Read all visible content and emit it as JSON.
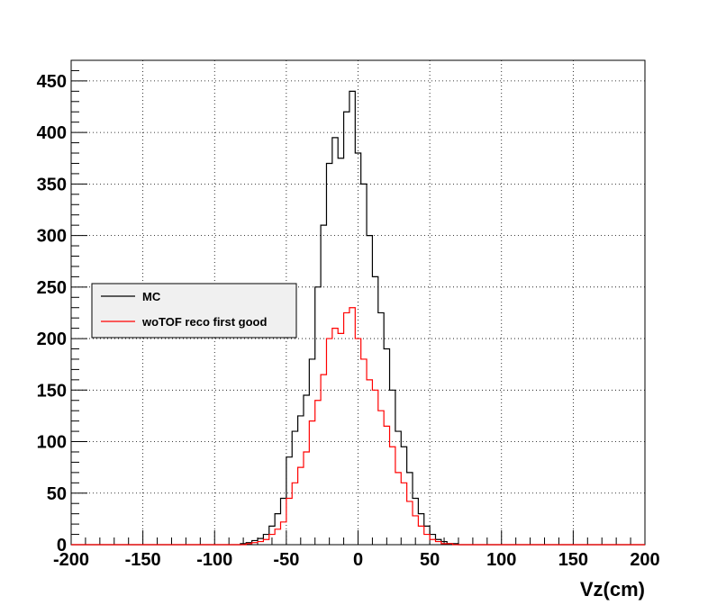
{
  "chart_data": {
    "type": "line",
    "title": "",
    "xlabel": "Vz(cm)",
    "ylabel": "",
    "xlim": [
      -200,
      200
    ],
    "ylim": [
      0,
      470
    ],
    "grid": true,
    "legend_position": "middle-left",
    "x_ticks": [
      -200,
      -150,
      -100,
      -50,
      0,
      50,
      100,
      150,
      200
    ],
    "y_ticks": [
      0,
      50,
      100,
      150,
      200,
      250,
      300,
      350,
      400,
      450
    ],
    "x": [
      -80,
      -76,
      -72,
      -68,
      -64,
      -60,
      -56,
      -52,
      -48,
      -44,
      -40,
      -36,
      -32,
      -28,
      -24,
      -20,
      -16,
      -12,
      -8,
      -4,
      0,
      4,
      8,
      12,
      16,
      20,
      24,
      28,
      32,
      36,
      40,
      44,
      48,
      52,
      56,
      60,
      64,
      68
    ],
    "series": [
      {
        "name": "MC",
        "color": "#000000",
        "values": [
          1,
          2,
          4,
          6,
          10,
          18,
          30,
          45,
          85,
          110,
          125,
          145,
          180,
          250,
          310,
          370,
          395,
          375,
          420,
          440,
          380,
          350,
          300,
          260,
          225,
          190,
          150,
          110,
          95,
          70,
          45,
          30,
          18,
          10,
          5,
          3,
          1,
          1
        ]
      },
      {
        "name": "woTOF reco first good",
        "color": "#ff0000",
        "values": [
          0,
          1,
          2,
          3,
          5,
          10,
          15,
          22,
          45,
          60,
          75,
          90,
          120,
          140,
          165,
          200,
          210,
          205,
          225,
          230,
          200,
          180,
          160,
          150,
          130,
          115,
          95,
          70,
          60,
          42,
          28,
          18,
          10,
          5,
          3,
          1,
          1,
          0
        ]
      }
    ]
  }
}
